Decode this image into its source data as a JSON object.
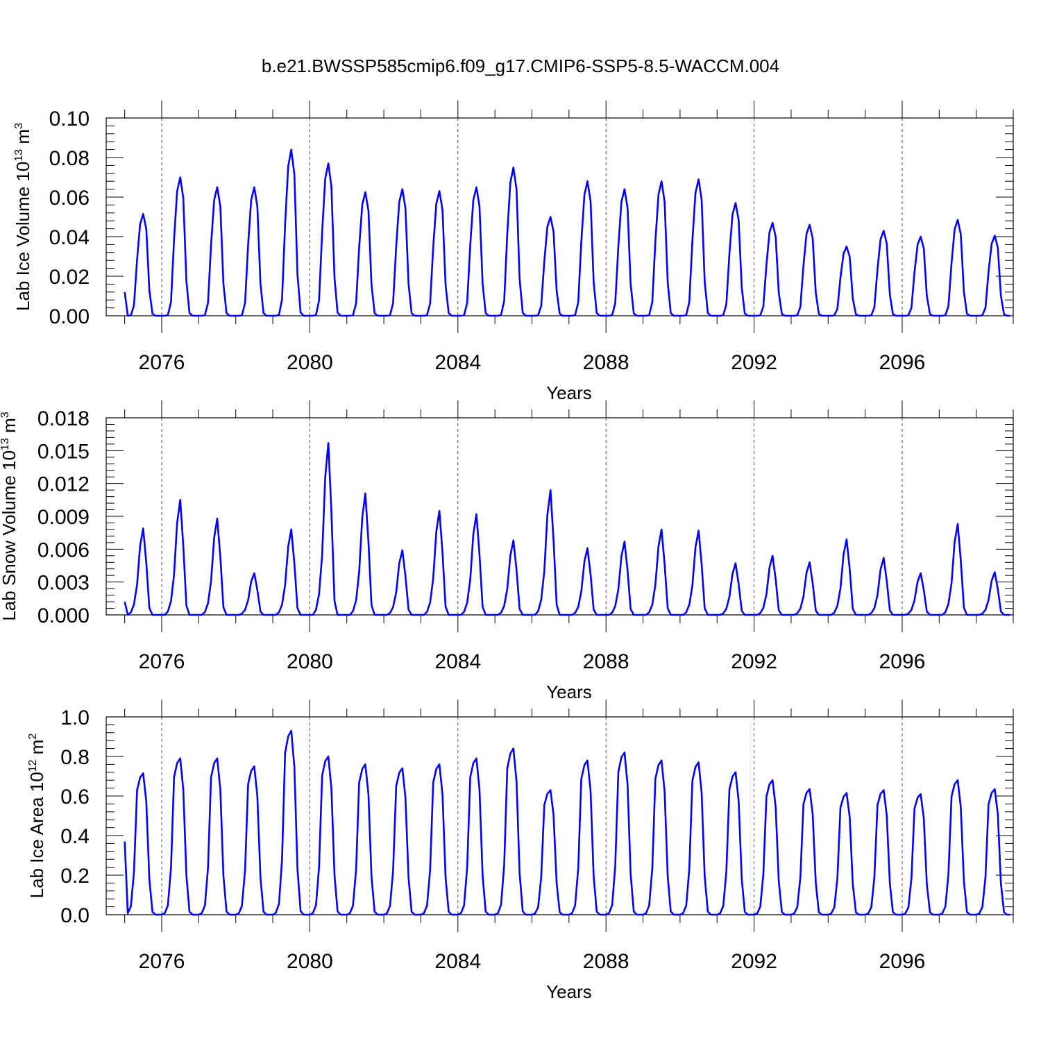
{
  "title": "b.e21.BWSSP585cmip6.f09_g17.CMIP6-SSP5-8.5-WACCM.004",
  "colors": {
    "line": "#0000ff",
    "axis": "#000000",
    "grid": "#555555"
  },
  "chart_data": [
    {
      "type": "line",
      "ylabel": {
        "main": "Lab Ice Volume 10",
        "sup": "13",
        "unit": " m",
        "unit_sup": "3"
      },
      "xlabel": "Years",
      "xlim": [
        2075.0,
        2099.0
      ],
      "ylim": [
        0.0,
        0.1
      ],
      "yticks": [
        "0.00",
        "0.02",
        "0.04",
        "0.06",
        "0.08",
        "0.10"
      ],
      "xticks": [
        "2076",
        "2080",
        "2084",
        "2088",
        "2092",
        "2096"
      ],
      "grid": "vertical dashed at major x ticks",
      "annual_peaks": [
        0.0515,
        0.07,
        0.065,
        0.065,
        0.084,
        0.077,
        0.0625,
        0.064,
        0.063,
        0.065,
        0.075,
        0.05,
        0.068,
        0.064,
        0.068,
        0.069,
        0.057,
        0.047,
        0.046,
        0.035,
        0.043,
        0.04,
        0.0485,
        0.0405
      ],
      "peak_shape": [
        0.0,
        0.0,
        0.005,
        0.1,
        0.55,
        0.9,
        1.0,
        0.85,
        0.25,
        0.02,
        0.0,
        0.0
      ],
      "first_value": 0.012
    },
    {
      "type": "line",
      "ylabel": {
        "main": "Lab Snow Volume 10",
        "sup": "13",
        "unit": " m",
        "unit_sup": "3"
      },
      "xlabel": "Years",
      "xlim": [
        2075.0,
        2099.0
      ],
      "ylim": [
        0.0,
        0.018
      ],
      "yticks": [
        "0.000",
        "0.003",
        "0.006",
        "0.009",
        "0.012",
        "0.015",
        "0.018"
      ],
      "xticks": [
        "2076",
        "2080",
        "2084",
        "2088",
        "2092",
        "2096"
      ],
      "grid": "vertical dashed at major x ticks",
      "annual_peaks": [
        0.0079,
        0.0105,
        0.0088,
        0.0038,
        0.0078,
        0.0157,
        0.0111,
        0.0059,
        0.0095,
        0.0092,
        0.0068,
        0.0114,
        0.0061,
        0.0067,
        0.0078,
        0.0077,
        0.0047,
        0.0054,
        0.0048,
        0.0069,
        0.0052,
        0.0038,
        0.0083,
        0.0039
      ],
      "peak_shape": [
        0.0,
        0.0,
        0.03,
        0.12,
        0.35,
        0.8,
        1.0,
        0.6,
        0.08,
        0.0,
        0.0,
        0.0
      ],
      "first_value": 0.0012
    },
    {
      "type": "line",
      "ylabel": {
        "main": "Lab Ice Area 10",
        "sup": "12",
        "unit": " m",
        "unit_sup": "2"
      },
      "xlabel": "Years",
      "xlim": [
        2075.0,
        2099.0
      ],
      "ylim": [
        0.0,
        1.0
      ],
      "yticks": [
        "0.0",
        "0.2",
        "0.4",
        "0.6",
        "0.8",
        "1.0"
      ],
      "xticks": [
        "2076",
        "2080",
        "2084",
        "2088",
        "2092",
        "2096"
      ],
      "grid": "vertical dashed at major x ticks",
      "annual_peaks": [
        0.715,
        0.79,
        0.79,
        0.75,
        0.93,
        0.8,
        0.76,
        0.74,
        0.76,
        0.79,
        0.84,
        0.63,
        0.78,
        0.82,
        0.78,
        0.77,
        0.72,
        0.68,
        0.635,
        0.615,
        0.63,
        0.61,
        0.68,
        0.635
      ],
      "peak_shape": [
        0.0,
        0.01,
        0.06,
        0.3,
        0.88,
        0.97,
        1.0,
        0.8,
        0.25,
        0.02,
        0.0,
        0.0
      ],
      "first_value": 0.37
    }
  ]
}
